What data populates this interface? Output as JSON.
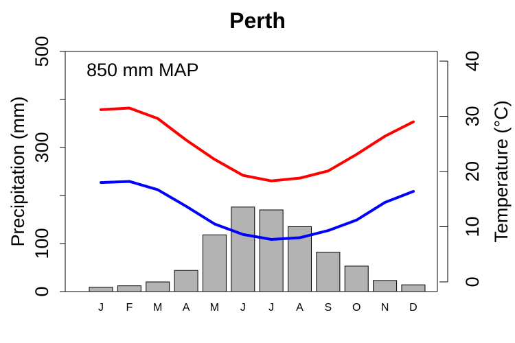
{
  "chart_data": {
    "type": "bar",
    "title": "Perth",
    "annotation": "850 mm MAP",
    "categories": [
      "J",
      "F",
      "M",
      "A",
      "M",
      "J",
      "J",
      "A",
      "S",
      "O",
      "N",
      "D"
    ],
    "precipitation": {
      "ylabel": "Precipitation (mm)",
      "ylim": [
        0,
        500
      ],
      "ticks": [
        0,
        100,
        200,
        300,
        400,
        500
      ],
      "tick_labels": [
        "0",
        "100",
        "",
        "300",
        "",
        "500"
      ],
      "values": [
        9,
        12,
        20,
        44,
        118,
        176,
        170,
        135,
        82,
        53,
        23,
        14
      ],
      "bar_color": "#b3b3b3"
    },
    "temperature": {
      "ylabel": "Temperature (°C)",
      "ylim": [
        -1.75,
        41.75
      ],
      "ticks": [
        0,
        10,
        20,
        30,
        40
      ],
      "tick_labels": [
        "0",
        "10",
        "20",
        "30",
        "40"
      ],
      "series": [
        {
          "color": "#ff0000",
          "values": [
            31.2,
            31.5,
            29.6,
            25.7,
            22.2,
            19.3,
            18.3,
            18.8,
            20.1,
            23.1,
            26.4,
            29.0
          ]
        },
        {
          "color": "#0000ff",
          "values": [
            18.0,
            18.2,
            16.7,
            13.7,
            10.5,
            8.6,
            7.7,
            8.0,
            9.3,
            11.2,
            14.4,
            16.4
          ]
        }
      ]
    },
    "grid": false
  }
}
